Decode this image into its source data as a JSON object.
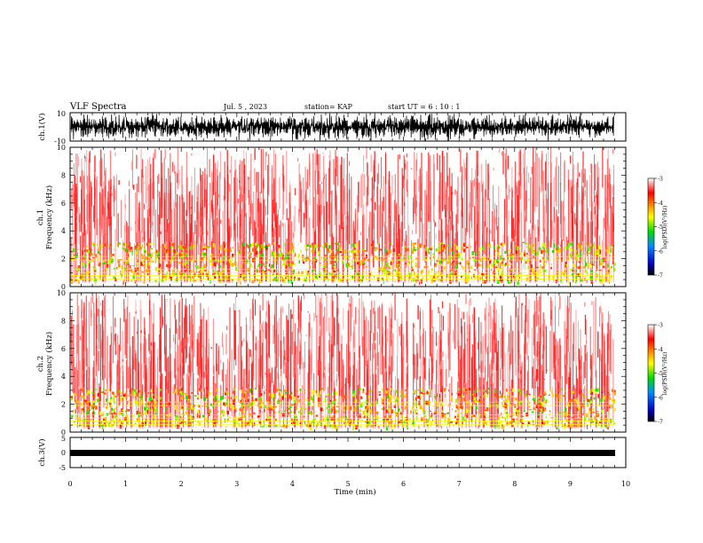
{
  "header": {
    "title": "VLF Spectra",
    "date": "Jul. 5 , 2023",
    "station": "station= KAP",
    "start": "start UT = 6 : 10 : 1"
  },
  "chart_data": [
    {
      "type": "line",
      "panel": "ch1-waveform",
      "ylabel": "ch.1(V)",
      "ylim": [
        -10,
        10
      ],
      "yticks": [
        "10",
        "-10"
      ],
      "xlim": [
        0,
        10
      ],
      "color": "#000000"
    },
    {
      "type": "heatmap",
      "panel": "ch1-spectrogram",
      "ylabel_line1": "ch.1",
      "ylabel_line2": "Frequency (kHz)",
      "ylim": [
        0,
        10
      ],
      "yticks": [
        "0",
        "2",
        "4",
        "6",
        "8",
        "10"
      ],
      "xlim": [
        0,
        10
      ],
      "colorbar": {
        "label": "log(PSD)(V²/Hz)",
        "range": [
          -7,
          -3
        ],
        "ticks": [
          "-3",
          "-4",
          "-5",
          "-6",
          "-7"
        ]
      }
    },
    {
      "type": "heatmap",
      "panel": "ch2-spectrogram",
      "ylabel_line1": "ch.2",
      "ylabel_line2": "Frequency (kHz)",
      "ylim": [
        0,
        10
      ],
      "yticks": [
        "0",
        "2",
        "4",
        "6",
        "8",
        "10"
      ],
      "xlim": [
        0,
        10
      ],
      "colorbar": {
        "label": "log(PSD)(V²/Hz)",
        "range": [
          -7,
          -3
        ],
        "ticks": [
          "-3",
          "-4",
          "-5",
          "-6",
          "-7"
        ]
      }
    },
    {
      "type": "line",
      "panel": "ch3-waveform",
      "ylabel": "ch.3(V)",
      "ylim": [
        -5,
        5
      ],
      "yticks": [
        "5",
        "0",
        "-5"
      ],
      "xlim": [
        0,
        10
      ],
      "xlabel": "Time (min)",
      "xticks": [
        "0",
        "1",
        "2",
        "3",
        "4",
        "5",
        "6",
        "7",
        "8",
        "9",
        "10"
      ],
      "color": "#000000"
    }
  ]
}
